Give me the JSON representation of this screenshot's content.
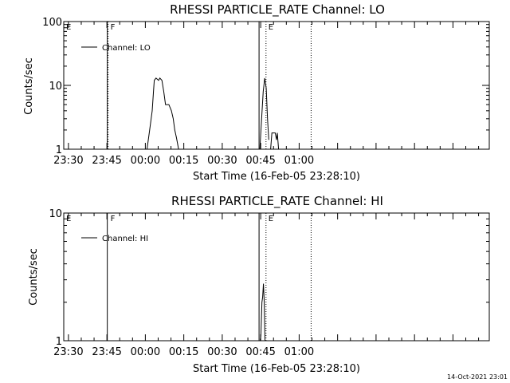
{
  "footer": {
    "timestamp": "14-Oct-2021 23:01"
  },
  "chart_data": [
    {
      "type": "line",
      "title": "RHESSI PARTICLE_RATE Channel: LO",
      "xlabel": "Start Time (16-Feb-05 23:28:10)",
      "ylabel": "Counts/sec",
      "y_scale": "log",
      "ylim": [
        1,
        100
      ],
      "yticks": [
        1,
        10,
        100
      ],
      "yticklabels": [
        "1",
        "10",
        "100"
      ],
      "xlim_minutes": [
        0,
        166
      ],
      "xticks_minutes": [
        1.83,
        16.83,
        31.83,
        46.83,
        61.83,
        76.83,
        91.83
      ],
      "xticklabels": [
        "23:30",
        "23:45",
        "00:00",
        "00:15",
        "00:30",
        "00:45",
        "01:00"
      ],
      "legend": {
        "position": "top-left",
        "entries": [
          "Channel: LO"
        ]
      },
      "markers": [
        {
          "label": "E",
          "time_minutes": 0,
          "style": "text"
        },
        {
          "label": "F",
          "time_minutes": 17.3,
          "style": "both"
        },
        {
          "label": "",
          "time_minutes": 76.5,
          "style": "solid"
        },
        {
          "label": "E",
          "time_minutes": 78.9,
          "style": "dotted"
        },
        {
          "label": "",
          "time_minutes": 96.5,
          "style": "dotted"
        }
      ],
      "series": [
        {
          "name": "Channel: LO",
          "points": [
            [
              32.5,
              1
            ],
            [
              33.5,
              2
            ],
            [
              34.5,
              4
            ],
            [
              35.0,
              8
            ],
            [
              35.3,
              12
            ],
            [
              36.0,
              13
            ],
            [
              37.0,
              12
            ],
            [
              37.5,
              13
            ],
            [
              38.3,
              12
            ],
            [
              39.0,
              8
            ],
            [
              39.7,
              5
            ],
            [
              41.0,
              5
            ],
            [
              42.0,
              4
            ],
            [
              42.7,
              3
            ],
            [
              43.3,
              2
            ],
            [
              44.0,
              1.5
            ],
            [
              44.8,
              1
            ],
            null,
            [
              76.5,
              1
            ],
            [
              77.2,
              3
            ],
            [
              77.8,
              8
            ],
            [
              78.4,
              13
            ],
            [
              79.0,
              9
            ],
            [
              79.5,
              3
            ],
            [
              80.0,
              1.4
            ],
            null,
            [
              80.7,
              1
            ],
            [
              81.2,
              1.8
            ],
            [
              82.5,
              1.8
            ],
            [
              83.0,
              1.4
            ],
            [
              83.3,
              1.8
            ],
            [
              83.8,
              1
            ]
          ]
        }
      ]
    },
    {
      "type": "line",
      "title": "RHESSI PARTICLE_RATE Channel: HI",
      "xlabel": "Start Time (16-Feb-05 23:28:10)",
      "ylabel": "Counts/sec",
      "y_scale": "log",
      "ylim": [
        1,
        10
      ],
      "yticks": [
        1,
        10
      ],
      "yticklabels": [
        "1",
        "10"
      ],
      "xlim_minutes": [
        0,
        166
      ],
      "xticks_minutes": [
        1.83,
        16.83,
        31.83,
        46.83,
        61.83,
        76.83,
        91.83
      ],
      "xticklabels": [
        "23:30",
        "23:45",
        "00:00",
        "00:15",
        "00:30",
        "00:45",
        "01:00"
      ],
      "legend": {
        "position": "top-left",
        "entries": [
          "Channel: HI"
        ]
      },
      "markers": [
        {
          "label": "E",
          "time_minutes": 0,
          "style": "text"
        },
        {
          "label": "F",
          "time_minutes": 17.3,
          "style": "solid"
        },
        {
          "label": "",
          "time_minutes": 76.5,
          "style": "solid"
        },
        {
          "label": "E",
          "time_minutes": 78.9,
          "style": "dotted"
        },
        {
          "label": "",
          "time_minutes": 96.5,
          "style": "dotted"
        }
      ],
      "series": [
        {
          "name": "Channel: HI",
          "points": [
            [
              76.6,
              1
            ],
            [
              76.9,
              1.1
            ],
            [
              77.3,
              2.0
            ],
            [
              77.6,
              2.2
            ],
            [
              77.9,
              2.8
            ],
            [
              78.2,
              2.0
            ],
            [
              78.5,
              1
            ]
          ]
        }
      ]
    }
  ]
}
